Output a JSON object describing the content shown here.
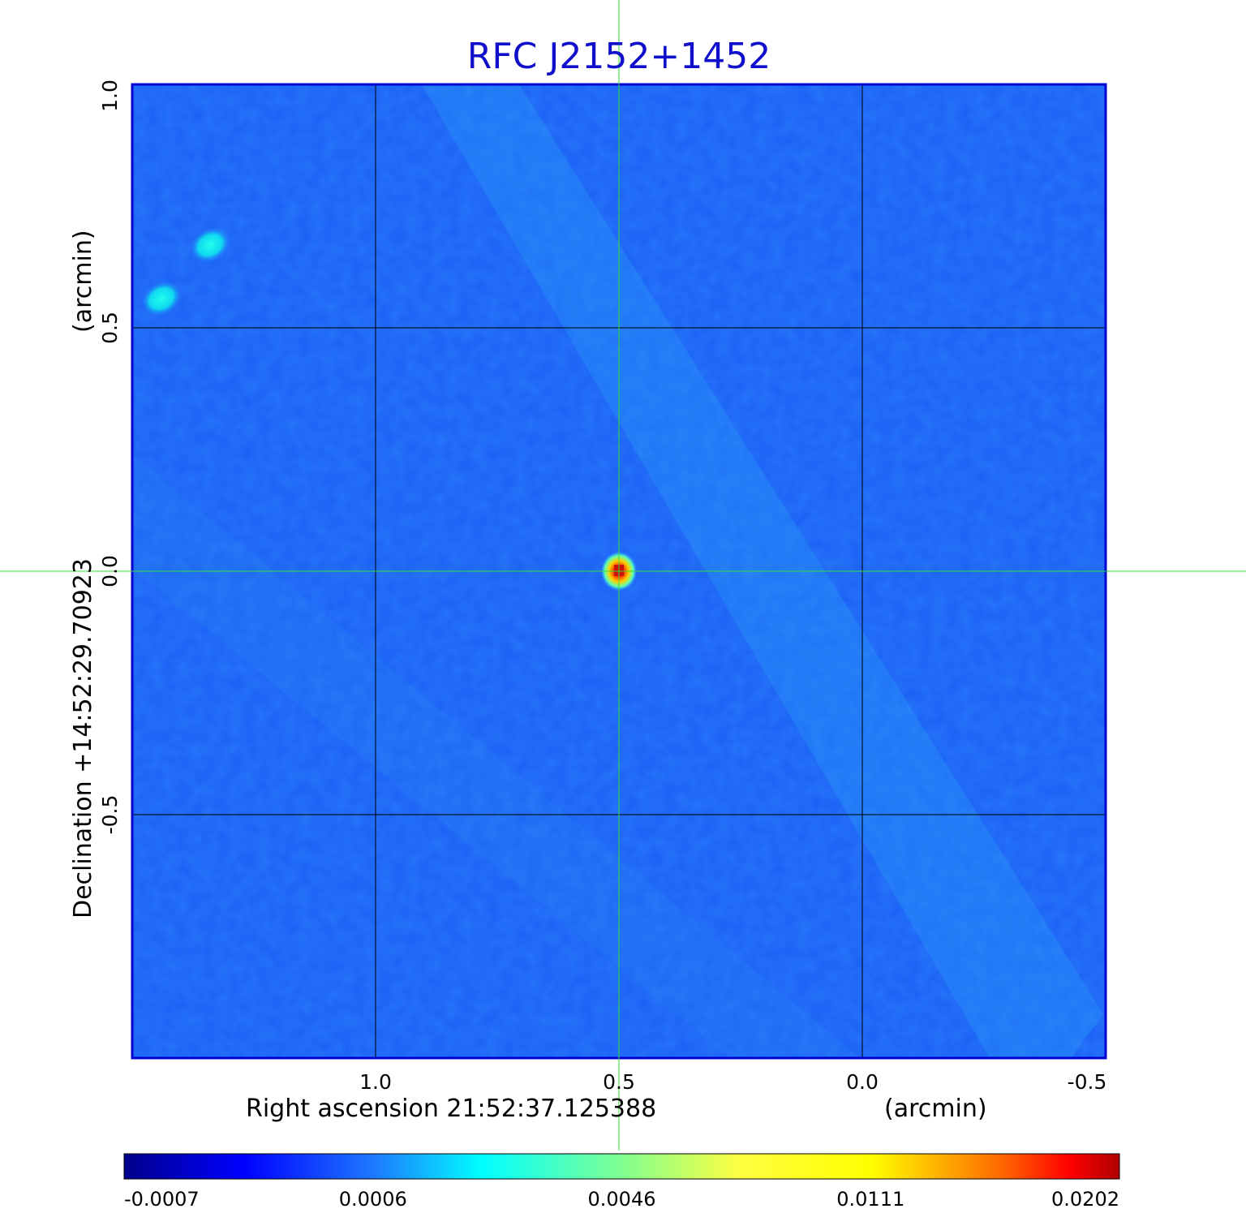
{
  "chart_data": {
    "type": "heatmap",
    "title": "RFC J2152+1452",
    "xlabel": "Right ascension  21:52:37.125388",
    "xunit": "(arcmin)",
    "ylabel": "Declination  +14:52:29.70923",
    "yunit": "(arcmin)",
    "xlim": [
      1.5,
      -0.5
    ],
    "ylim": [
      -1.0,
      1.0
    ],
    "x_ticks": [
      "1.0",
      "0.5",
      "0.0",
      "-0.5"
    ],
    "x_tick_values": [
      1.0,
      0.5,
      0.0,
      -0.5
    ],
    "y_ticks": [
      "-0.5",
      "0.0",
      "0.5",
      "1.0"
    ],
    "y_tick_values": [
      -0.5,
      0.0,
      0.5,
      1.0
    ],
    "grid": true,
    "crosshair": [
      0.5,
      0.0
    ],
    "colormap": "jet",
    "colorbar_labels": [
      "-0.0007",
      "0.0006",
      "0.0046",
      "0.0111",
      "0.0202"
    ],
    "features": [
      {
        "x": 0.5,
        "y": 0.0,
        "value": 0.0202
      },
      {
        "x": 1.34,
        "y": 0.67,
        "value": 0.0046
      },
      {
        "x": 1.44,
        "y": 0.56,
        "value": 0.0046
      }
    ]
  },
  "colors": {
    "title": "#1010cc",
    "grid": "#000000",
    "crosshair": "#33dd33",
    "frame": "#0000d0"
  }
}
